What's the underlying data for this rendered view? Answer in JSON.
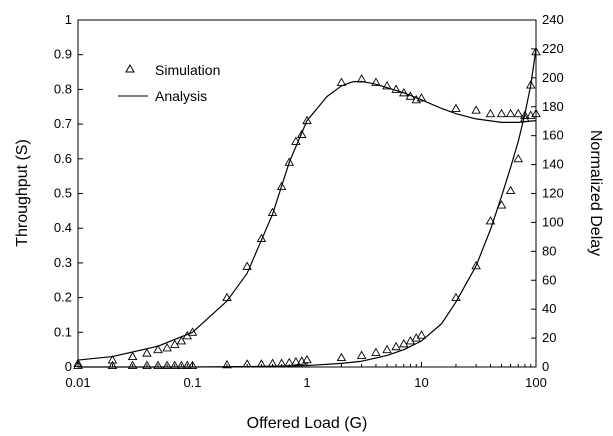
{
  "chart_data": {
    "type": "line",
    "xlabel": "Offered Load (G)",
    "ylabel": "Throughput (S)",
    "y2label": "Normalized Delay",
    "xscale": "log",
    "xlim": [
      0.01,
      100
    ],
    "ylim": [
      0,
      1
    ],
    "y2lim": [
      0,
      240
    ],
    "xticks": [
      "0.01",
      "0.1",
      "1",
      "10",
      "100"
    ],
    "yticks": [
      "0",
      "0.1",
      "0.2",
      "0.3",
      "0.4",
      "0.5",
      "0.6",
      "0.7",
      "0.8",
      "0.9",
      "1"
    ],
    "y2ticks": [
      "0",
      "20",
      "40",
      "60",
      "80",
      "100",
      "120",
      "140",
      "160",
      "180",
      "200",
      "220",
      "240"
    ],
    "legend": {
      "position": "top-left",
      "entries": [
        {
          "label": "Simulation",
          "marker": "triangle"
        },
        {
          "label": "Analysis",
          "marker": "line"
        }
      ]
    },
    "series": [
      {
        "name": "Simulation",
        "kind": "scatter-triangle",
        "axis": "left",
        "x": [
          0.01,
          0.02,
          0.03,
          0.04,
          0.05,
          0.06,
          0.07,
          0.08,
          0.09,
          0.1,
          0.2,
          0.3,
          0.4,
          0.5,
          0.6,
          0.7,
          0.8,
          0.9,
          1,
          2,
          3,
          4,
          5,
          6,
          7,
          8,
          9,
          10,
          20,
          30,
          40,
          50,
          60,
          70,
          80,
          90,
          100
        ],
        "y": [
          0.01,
          0.02,
          0.03,
          0.04,
          0.05,
          0.055,
          0.065,
          0.075,
          0.09,
          0.1,
          0.2,
          0.29,
          0.37,
          0.445,
          0.52,
          0.59,
          0.65,
          0.67,
          0.71,
          0.82,
          0.83,
          0.82,
          0.81,
          0.8,
          0.79,
          0.78,
          0.77,
          0.775,
          0.745,
          0.74,
          0.73,
          0.73,
          0.73,
          0.73,
          0.725,
          0.725,
          0.73
        ]
      },
      {
        "name": "Analysis",
        "kind": "line",
        "axis": "left",
        "x": [
          0.01,
          0.02,
          0.05,
          0.1,
          0.2,
          0.3,
          0.5,
          0.7,
          1,
          1.5,
          2,
          2.5,
          3,
          4,
          5,
          7,
          10,
          15,
          20,
          30,
          50,
          70,
          100
        ],
        "y": [
          0.02,
          0.03,
          0.06,
          0.1,
          0.19,
          0.27,
          0.44,
          0.59,
          0.71,
          0.78,
          0.81,
          0.822,
          0.823,
          0.815,
          0.805,
          0.79,
          0.77,
          0.745,
          0.73,
          0.715,
          0.705,
          0.705,
          0.71
        ]
      },
      {
        "name": "Simulation",
        "kind": "scatter-triangle",
        "axis": "right",
        "x": [
          0.01,
          0.02,
          0.03,
          0.04,
          0.05,
          0.06,
          0.07,
          0.08,
          0.09,
          0.1,
          0.2,
          0.3,
          0.4,
          0.5,
          0.6,
          0.7,
          0.8,
          0.9,
          1,
          2,
          3,
          4,
          5,
          6,
          7,
          8,
          9,
          10,
          20,
          30,
          40,
          50,
          60,
          70,
          80,
          90,
          100
        ],
        "y": [
          1,
          1,
          1,
          1,
          1,
          1,
          1,
          1,
          1,
          1,
          1.5,
          2,
          2,
          2.5,
          2.5,
          3,
          3.5,
          4,
          5,
          6.5,
          8,
          10,
          12,
          14,
          16,
          18,
          20,
          22,
          48,
          70,
          101,
          112,
          122,
          144,
          172,
          195,
          218
        ]
      },
      {
        "name": "Analysis",
        "kind": "line",
        "axis": "right",
        "x": [
          0.01,
          0.1,
          0.5,
          1,
          2,
          3,
          5,
          7,
          10,
          15,
          20,
          30,
          40,
          50,
          60,
          70,
          80,
          90,
          100
        ],
        "y": [
          0,
          0,
          0.5,
          1,
          2.5,
          4,
          8,
          12,
          18,
          30,
          45,
          70,
          95,
          118,
          138,
          156,
          175,
          195,
          220
        ]
      }
    ]
  }
}
